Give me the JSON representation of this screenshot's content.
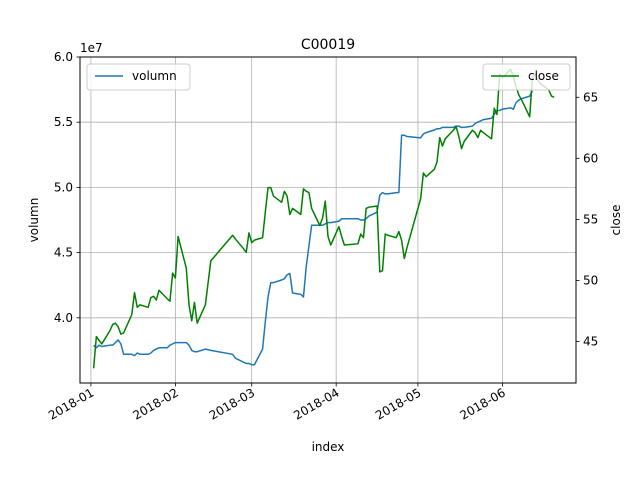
{
  "chart_data": {
    "type": "line",
    "title": "C00019",
    "xlabel": "index",
    "ylabel_left": "volumn",
    "ylabel_right": "close",
    "left_axis_multiplier": "1e7",
    "grid": true,
    "x_range": [
      "2017-12-28",
      "2018-06-28"
    ],
    "ylim_left": [
      3.5,
      6.0
    ],
    "ylim_right": [
      41.6,
      68.3
    ],
    "x_tick_labels": [
      "2018-01",
      "2018-02",
      "2018-03",
      "2018-04",
      "2018-05",
      "2018-06"
    ],
    "x_tick_dates": [
      "2018-01-01",
      "2018-02-01",
      "2018-03-01",
      "2018-04-01",
      "2018-05-01",
      "2018-06-01"
    ],
    "y_left_ticks": [
      "4.0",
      "4.5",
      "5.0",
      "5.5",
      "6.0"
    ],
    "y_left_tick_values": [
      4.0,
      4.5,
      5.0,
      5.5,
      6.0
    ],
    "y_right_ticks": [
      "45",
      "50",
      "55",
      "60",
      "65"
    ],
    "y_right_tick_values": [
      45,
      50,
      55,
      60,
      65
    ],
    "legend_left": {
      "position": "top-left",
      "label": "volumn"
    },
    "legend_right": {
      "position": "top-right",
      "label": "close"
    },
    "colors": {
      "volumn": "#1f77b4",
      "close": "#008000",
      "grid": "#b0b0b0"
    },
    "series": [
      {
        "name": "volumn",
        "axis": "left",
        "points": [
          [
            "2018-01-02",
            3.79
          ],
          [
            "2018-01-03",
            3.77
          ],
          [
            "2018-01-04",
            3.79
          ],
          [
            "2018-01-05",
            3.78
          ],
          [
            "2018-01-08",
            3.79
          ],
          [
            "2018-01-09",
            3.79
          ],
          [
            "2018-01-10",
            3.81
          ],
          [
            "2018-01-11",
            3.83
          ],
          [
            "2018-01-12",
            3.8
          ],
          [
            "2018-01-13",
            3.72
          ],
          [
            "2018-01-16",
            3.72
          ],
          [
            "2018-01-17",
            3.71
          ],
          [
            "2018-01-18",
            3.73
          ],
          [
            "2018-01-19",
            3.72
          ],
          [
            "2018-01-22",
            3.72
          ],
          [
            "2018-01-23",
            3.73
          ],
          [
            "2018-01-24",
            3.75
          ],
          [
            "2018-01-25",
            3.76
          ],
          [
            "2018-01-26",
            3.77
          ],
          [
            "2018-01-29",
            3.77
          ],
          [
            "2018-01-30",
            3.79
          ],
          [
            "2018-01-31",
            3.8
          ],
          [
            "2018-02-01",
            3.81
          ],
          [
            "2018-02-02",
            3.81
          ],
          [
            "2018-02-05",
            3.81
          ],
          [
            "2018-02-06",
            3.79
          ],
          [
            "2018-02-07",
            3.75
          ],
          [
            "2018-02-08",
            3.74
          ],
          [
            "2018-02-09",
            3.74
          ],
          [
            "2018-02-12",
            3.76
          ],
          [
            "2018-02-14",
            3.75
          ],
          [
            "2018-02-22",
            3.72
          ],
          [
            "2018-02-23",
            3.69
          ],
          [
            "2018-02-26",
            3.66
          ],
          [
            "2018-02-27",
            3.65
          ],
          [
            "2018-02-28",
            3.65
          ],
          [
            "2018-03-01",
            3.64
          ],
          [
            "2018-03-02",
            3.64
          ],
          [
            "2018-03-05",
            3.76
          ],
          [
            "2018-03-06",
            3.97
          ],
          [
            "2018-03-07",
            4.16
          ],
          [
            "2018-03-08",
            4.27
          ],
          [
            "2018-03-09",
            4.27
          ],
          [
            "2018-03-12",
            4.29
          ],
          [
            "2018-03-13",
            4.3
          ],
          [
            "2018-03-14",
            4.33
          ],
          [
            "2018-03-15",
            4.34
          ],
          [
            "2018-03-16",
            4.19
          ],
          [
            "2018-03-19",
            4.18
          ],
          [
            "2018-03-20",
            4.16
          ],
          [
            "2018-03-21",
            4.39
          ],
          [
            "2018-03-22",
            4.55
          ],
          [
            "2018-03-23",
            4.71
          ],
          [
            "2018-03-26",
            4.71
          ],
          [
            "2018-03-27",
            4.71
          ],
          [
            "2018-03-28",
            4.72
          ],
          [
            "2018-03-29",
            4.73
          ],
          [
            "2018-03-30",
            4.73
          ],
          [
            "2018-04-02",
            4.74
          ],
          [
            "2018-04-03",
            4.76
          ],
          [
            "2018-04-04",
            4.76
          ],
          [
            "2018-04-09",
            4.76
          ],
          [
            "2018-04-10",
            4.75
          ],
          [
            "2018-04-11",
            4.75
          ],
          [
            "2018-04-12",
            4.76
          ],
          [
            "2018-04-13",
            4.78
          ],
          [
            "2018-04-16",
            4.81
          ],
          [
            "2018-04-17",
            4.94
          ],
          [
            "2018-04-18",
            4.96
          ],
          [
            "2018-04-19",
            4.95
          ],
          [
            "2018-04-20",
            4.95
          ],
          [
            "2018-04-23",
            4.96
          ],
          [
            "2018-04-24",
            4.96
          ],
          [
            "2018-04-25",
            5.4
          ],
          [
            "2018-04-26",
            5.4
          ],
          [
            "2018-04-27",
            5.39
          ],
          [
            "2018-05-02",
            5.38
          ],
          [
            "2018-05-03",
            5.41
          ],
          [
            "2018-05-04",
            5.42
          ],
          [
            "2018-05-07",
            5.44
          ],
          [
            "2018-05-08",
            5.45
          ],
          [
            "2018-05-09",
            5.45
          ],
          [
            "2018-05-10",
            5.46
          ],
          [
            "2018-05-11",
            5.46
          ],
          [
            "2018-05-14",
            5.46
          ],
          [
            "2018-05-15",
            5.47
          ],
          [
            "2018-05-16",
            5.47
          ],
          [
            "2018-05-17",
            5.46
          ],
          [
            "2018-05-18",
            5.46
          ],
          [
            "2018-05-21",
            5.47
          ],
          [
            "2018-05-22",
            5.49
          ],
          [
            "2018-05-23",
            5.5
          ],
          [
            "2018-05-24",
            5.51
          ],
          [
            "2018-05-25",
            5.52
          ],
          [
            "2018-05-28",
            5.53
          ],
          [
            "2018-05-29",
            5.56
          ],
          [
            "2018-05-30",
            5.59
          ],
          [
            "2018-05-31",
            5.59
          ],
          [
            "2018-06-01",
            5.6
          ],
          [
            "2018-06-04",
            5.61
          ],
          [
            "2018-06-05",
            5.6
          ],
          [
            "2018-06-06",
            5.65
          ],
          [
            "2018-06-07",
            5.67
          ],
          [
            "2018-06-08",
            5.68
          ],
          [
            "2018-06-11",
            5.7
          ],
          [
            "2018-06-12",
            5.74
          ]
        ]
      },
      {
        "name": "close",
        "axis": "right",
        "points": [
          [
            "2018-01-02",
            42.8
          ],
          [
            "2018-01-03",
            45.4
          ],
          [
            "2018-01-04",
            45.1
          ],
          [
            "2018-01-05",
            44.8
          ],
          [
            "2018-01-08",
            45.9
          ],
          [
            "2018-01-09",
            46.4
          ],
          [
            "2018-01-10",
            46.5
          ],
          [
            "2018-01-11",
            46.2
          ],
          [
            "2018-01-12",
            45.6
          ],
          [
            "2018-01-13",
            45.7
          ],
          [
            "2018-01-16",
            47.2
          ],
          [
            "2018-01-17",
            49.0
          ],
          [
            "2018-01-18",
            47.8
          ],
          [
            "2018-01-19",
            48.0
          ],
          [
            "2018-01-22",
            47.8
          ],
          [
            "2018-01-23",
            48.6
          ],
          [
            "2018-01-24",
            48.7
          ],
          [
            "2018-01-25",
            48.4
          ],
          [
            "2018-01-26",
            49.2
          ],
          [
            "2018-01-29",
            48.5
          ],
          [
            "2018-01-30",
            48.3
          ],
          [
            "2018-01-31",
            50.6
          ],
          [
            "2018-02-01",
            50.2
          ],
          [
            "2018-02-02",
            53.6
          ],
          [
            "2018-02-05",
            51.0
          ],
          [
            "2018-02-06",
            48.0
          ],
          [
            "2018-02-07",
            46.7
          ],
          [
            "2018-02-08",
            48.2
          ],
          [
            "2018-02-09",
            46.5
          ],
          [
            "2018-02-12",
            48.0
          ],
          [
            "2018-02-14",
            51.6
          ],
          [
            "2018-02-22",
            53.7
          ],
          [
            "2018-02-23",
            53.4
          ],
          [
            "2018-02-26",
            52.6
          ],
          [
            "2018-02-27",
            52.3
          ],
          [
            "2018-02-28",
            53.9
          ],
          [
            "2018-03-01",
            53.1
          ],
          [
            "2018-03-02",
            53.3
          ],
          [
            "2018-03-05",
            53.5
          ],
          [
            "2018-03-06",
            55.6
          ],
          [
            "2018-03-07",
            57.6
          ],
          [
            "2018-03-08",
            57.6
          ],
          [
            "2018-03-09",
            56.9
          ],
          [
            "2018-03-12",
            56.4
          ],
          [
            "2018-03-13",
            57.3
          ],
          [
            "2018-03-14",
            56.9
          ],
          [
            "2018-03-15",
            55.4
          ],
          [
            "2018-03-16",
            55.9
          ],
          [
            "2018-03-19",
            55.4
          ],
          [
            "2018-03-20",
            57.5
          ],
          [
            "2018-03-21",
            57.3
          ],
          [
            "2018-03-22",
            57.2
          ],
          [
            "2018-03-23",
            55.9
          ],
          [
            "2018-03-26",
            54.5
          ],
          [
            "2018-03-27",
            55.1
          ],
          [
            "2018-03-28",
            56.5
          ],
          [
            "2018-03-29",
            53.6
          ],
          [
            "2018-03-30",
            52.9
          ],
          [
            "2018-04-02",
            54.4
          ],
          [
            "2018-04-03",
            53.6
          ],
          [
            "2018-04-04",
            52.9
          ],
          [
            "2018-04-09",
            53.0
          ],
          [
            "2018-04-10",
            53.8
          ],
          [
            "2018-04-11",
            53.5
          ],
          [
            "2018-04-12",
            55.9
          ],
          [
            "2018-04-13",
            56.0
          ],
          [
            "2018-04-16",
            56.1
          ],
          [
            "2018-04-17",
            50.7
          ],
          [
            "2018-04-18",
            50.8
          ],
          [
            "2018-04-19",
            53.8
          ],
          [
            "2018-04-20",
            53.7
          ],
          [
            "2018-04-23",
            53.5
          ],
          [
            "2018-04-24",
            54.0
          ],
          [
            "2018-04-25",
            53.3
          ],
          [
            "2018-04-26",
            51.8
          ],
          [
            "2018-04-27",
            52.7
          ],
          [
            "2018-05-02",
            56.7
          ],
          [
            "2018-05-03",
            58.8
          ],
          [
            "2018-05-04",
            58.5
          ],
          [
            "2018-05-07",
            59.1
          ],
          [
            "2018-05-08",
            59.7
          ],
          [
            "2018-05-09",
            61.7
          ],
          [
            "2018-05-10",
            61.0
          ],
          [
            "2018-05-11",
            61.6
          ],
          [
            "2018-05-14",
            62.3
          ],
          [
            "2018-05-15",
            62.6
          ],
          [
            "2018-05-16",
            61.8
          ],
          [
            "2018-05-17",
            60.8
          ],
          [
            "2018-05-18",
            61.4
          ],
          [
            "2018-05-21",
            62.3
          ],
          [
            "2018-05-22",
            62.1
          ],
          [
            "2018-05-23",
            61.7
          ],
          [
            "2018-05-24",
            62.3
          ],
          [
            "2018-05-25",
            62.1
          ],
          [
            "2018-05-28",
            61.6
          ],
          [
            "2018-05-29",
            64.1
          ],
          [
            "2018-05-30",
            63.6
          ],
          [
            "2018-05-31",
            66.9
          ],
          [
            "2018-06-01",
            66.6
          ],
          [
            "2018-06-04",
            67.3
          ],
          [
            "2018-06-05",
            66.7
          ],
          [
            "2018-06-06",
            65.9
          ],
          [
            "2018-06-07",
            65.2
          ],
          [
            "2018-06-08",
            64.8
          ],
          [
            "2018-06-11",
            63.4
          ],
          [
            "2018-06-12",
            66.6
          ],
          [
            "2018-06-13",
            66.9
          ],
          [
            "2018-06-14",
            66.4
          ],
          [
            "2018-06-15",
            66.1
          ],
          [
            "2018-06-18",
            65.6
          ],
          [
            "2018-06-19",
            65.1
          ],
          [
            "2018-06-20",
            65.0
          ]
        ]
      }
    ]
  }
}
